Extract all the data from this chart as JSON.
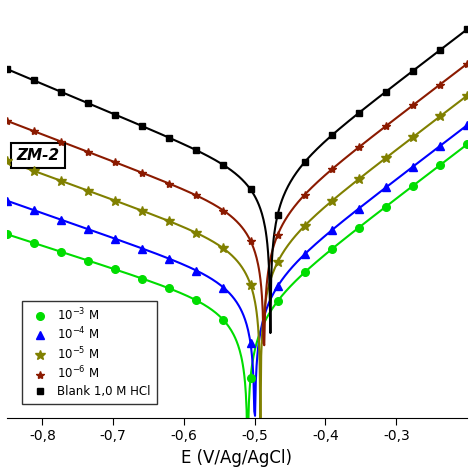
{
  "xlabel": "E (V/Ag/AgCl)",
  "xlim": [
    -0.85,
    -0.2
  ],
  "ylim": [
    1e-08,
    0.01
  ],
  "x_ticks": [
    -0.8,
    -0.7,
    -0.6,
    -0.5,
    -0.4,
    -0.3
  ],
  "series": [
    {
      "label": "$10^{-3}$ M",
      "color": "#00dd00",
      "marker": "o",
      "markersize": 5.5,
      "ecorr": -0.51,
      "icorr": 3.5e-07,
      "ba": 0.055,
      "bc": 0.13
    },
    {
      "label": "$10^{-4}$ M",
      "color": "#0000ff",
      "marker": "^",
      "markersize": 5.5,
      "ecorr": -0.5,
      "icorr": 8e-07,
      "ba": 0.055,
      "bc": 0.12
    },
    {
      "label": "$10^{-5}$ M",
      "color": "#808000",
      "marker": "*",
      "markersize": 7,
      "ecorr": -0.492,
      "icorr": 2.5e-06,
      "ba": 0.055,
      "bc": 0.115
    },
    {
      "label": "$10^{-6}$ M",
      "color": "#8b1a00",
      "marker": "*",
      "markersize": 6,
      "ecorr": -0.487,
      "icorr": 8e-06,
      "ba": 0.055,
      "bc": 0.11
    },
    {
      "label": "Blank 1,0 M HCl",
      "color": "#000000",
      "marker": "s",
      "markersize": 5,
      "ecorr": -0.478,
      "icorr": 3e-05,
      "ba": 0.055,
      "bc": 0.1
    }
  ],
  "background_color": "#ffffff",
  "legend_label": "ZM-2"
}
